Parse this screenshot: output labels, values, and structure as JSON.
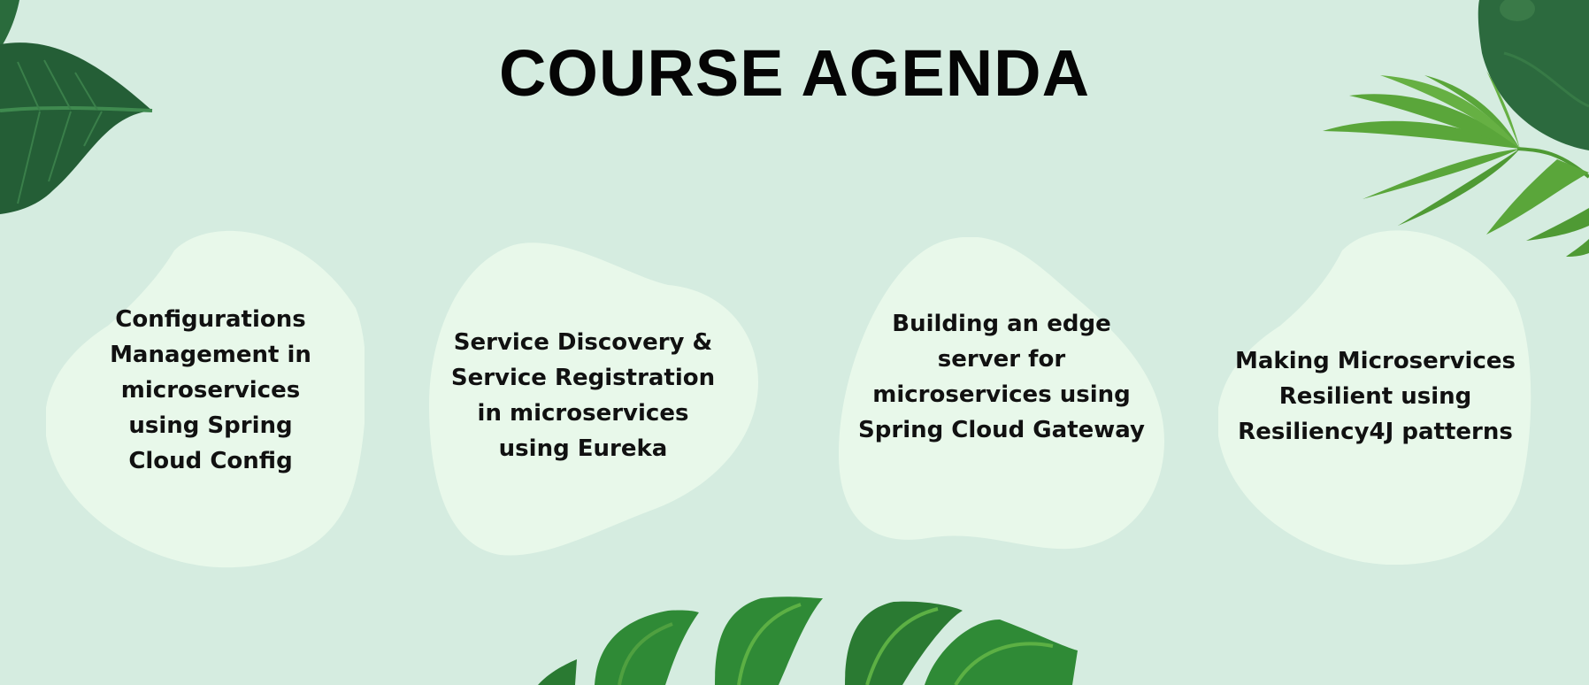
{
  "slide": {
    "title": "COURSE AGENDA",
    "colors": {
      "background": "#d5ece0",
      "blob": "#e8f8ea",
      "title_text": "#050505",
      "leaf_dark": "#245e36",
      "leaf_mid": "#2f7d35",
      "leaf_light": "#5aa63a"
    },
    "decorations": [
      "monstera-leaf-top-left",
      "palm-frond-top-right",
      "monstera-leaves-bottom"
    ],
    "agenda_items": [
      {
        "text": "Configurations Management in microservices using Spring Cloud Config"
      },
      {
        "text": "Service Discovery & Service Registration in microservices using Eureka"
      },
      {
        "text": "Building an edge server for microservices using Spring Cloud Gateway"
      },
      {
        "text": "Making Microservices Resilient using Resiliency4J patterns"
      }
    ]
  }
}
